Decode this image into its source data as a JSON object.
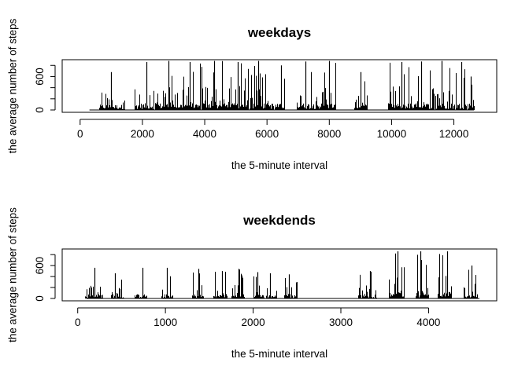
{
  "chart_data": [
    {
      "type": "histogram-line",
      "title": "weekdays",
      "xlabel": "the 5-minute interval",
      "ylabel": "the average number of steps",
      "x_ticks": [
        0,
        2000,
        4000,
        6000,
        8000,
        10000,
        12000
      ],
      "y_ticks_labeled": [
        0,
        600
      ],
      "y_ticks_all": [
        0,
        200,
        400,
        600,
        800
      ],
      "xlim": [
        -500,
        13300
      ],
      "ylim": [
        0,
        860
      ],
      "bursts": [
        [
          600,
          1420,
          680
        ],
        [
          1750,
          2350,
          860
        ],
        [
          2400,
          3050,
          880
        ],
        [
          3050,
          3850,
          860
        ],
        [
          3900,
          4700,
          880
        ],
        [
          4700,
          5400,
          860
        ],
        [
          5450,
          6200,
          880
        ],
        [
          6250,
          6550,
          800
        ],
        [
          6950,
          7550,
          870
        ],
        [
          7550,
          8200,
          880
        ],
        [
          8800,
          9200,
          680
        ],
        [
          9900,
          10600,
          860
        ],
        [
          10600,
          11350,
          870
        ],
        [
          11400,
          12000,
          880
        ],
        [
          12050,
          12400,
          860
        ],
        [
          12450,
          12650,
          600
        ]
      ],
      "line_extent": [
        300,
        12650
      ]
    },
    {
      "type": "histogram-line",
      "title": "weekdends",
      "xlabel": "the 5-minute interval",
      "ylabel": "the average number of steps",
      "x_ticks": [
        0,
        1000,
        2000,
        3000,
        4000
      ],
      "y_ticks_labeled": [
        0,
        600
      ],
      "y_ticks_all": [
        0,
        200,
        400,
        600,
        800
      ],
      "xlim": [
        -150,
        4750
      ],
      "ylim": [
        0,
        860
      ],
      "bursts": [
        [
          80,
          280,
          560
        ],
        [
          380,
          520,
          460
        ],
        [
          650,
          780,
          560
        ],
        [
          950,
          1080,
          560
        ],
        [
          1300,
          1430,
          540
        ],
        [
          1550,
          1700,
          500
        ],
        [
          1750,
          1900,
          540
        ],
        [
          2000,
          2120,
          480
        ],
        [
          2150,
          2260,
          460
        ],
        [
          2350,
          2500,
          440
        ],
        [
          3200,
          3400,
          500
        ],
        [
          3550,
          3720,
          860
        ],
        [
          3850,
          4000,
          860
        ],
        [
          4100,
          4260,
          860
        ],
        [
          4400,
          4550,
          600
        ]
      ],
      "line_extent": [
        100,
        4580
      ]
    }
  ]
}
